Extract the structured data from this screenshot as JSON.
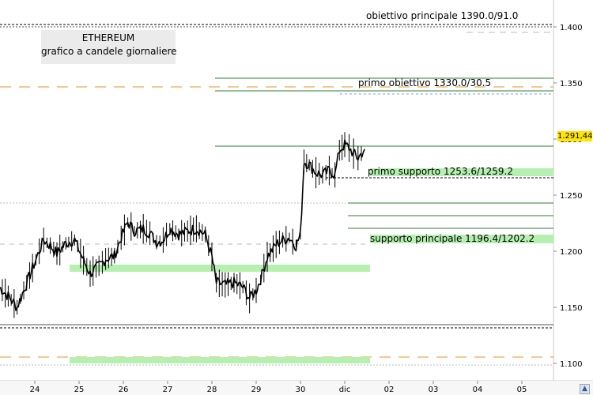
{
  "header": {
    "asset": "ETHEREUM",
    "subtitle": "grafico a candele giornaliere"
  },
  "last_price": "1.291,44",
  "annotations": {
    "target_main": "obiettivo principale 1390.0/91.0",
    "target_first": "primo obiettivo 1330.0/30.5",
    "support_first": "primo supporto 1253.6/1259.2",
    "support_main": "supporto principale 1196.4/1202.2"
  },
  "colors": {
    "candle": "#000000",
    "level_green": "#2e7d32",
    "support_zone": "#b6f0b0",
    "orange_dash": "#f5b56b",
    "price_tag": "#ffe600"
  },
  "chart_data": {
    "type": "line",
    "title": "ETHEREUM",
    "subtitle": "grafico a candele giornaliere",
    "xlabel": "",
    "ylabel": "",
    "x_ticks": [
      "24",
      "25",
      "26",
      "27",
      "28",
      "29",
      "30",
      "dic",
      "02",
      "03",
      "04",
      "05"
    ],
    "y_ticks": [
      "1.100",
      "1.150",
      "1.200",
      "1.250",
      "1.300",
      "1.350",
      "1.400"
    ],
    "ylim": [
      1.09,
      1.42
    ],
    "xlim": [
      23.2,
      35.5
    ],
    "grid": false,
    "series": [
      {
        "values": [
          [
            23.2,
            1.168
          ],
          [
            23.4,
            1.16
          ],
          [
            23.6,
            1.15
          ],
          [
            23.75,
            1.165
          ],
          [
            23.95,
            1.185
          ],
          [
            24.1,
            1.2
          ],
          [
            24.2,
            1.21
          ],
          [
            24.35,
            1.205
          ],
          [
            24.5,
            1.198
          ],
          [
            24.7,
            1.207
          ],
          [
            24.9,
            1.21
          ],
          [
            25.1,
            1.192
          ],
          [
            25.25,
            1.18
          ],
          [
            25.45,
            1.187
          ],
          [
            25.6,
            1.193
          ],
          [
            25.8,
            1.196
          ],
          [
            25.95,
            1.212
          ],
          [
            26.1,
            1.226
          ],
          [
            26.25,
            1.218
          ],
          [
            26.45,
            1.22
          ],
          [
            26.6,
            1.216
          ],
          [
            26.75,
            1.208
          ],
          [
            26.9,
            1.21
          ],
          [
            27.05,
            1.22
          ],
          [
            27.25,
            1.215
          ],
          [
            27.45,
            1.218
          ],
          [
            27.65,
            1.22
          ],
          [
            27.85,
            1.215
          ],
          [
            28.0,
            1.195
          ],
          [
            28.1,
            1.172
          ],
          [
            28.3,
            1.17
          ],
          [
            28.5,
            1.172
          ],
          [
            28.7,
            1.168
          ],
          [
            28.85,
            1.158
          ],
          [
            29.0,
            1.165
          ],
          [
            29.1,
            1.175
          ],
          [
            29.25,
            1.195
          ],
          [
            29.45,
            1.206
          ],
          [
            29.6,
            1.21
          ],
          [
            29.75,
            1.212
          ],
          [
            29.9,
            1.205
          ],
          [
            30.0,
            1.215
          ],
          [
            30.08,
            1.28
          ],
          [
            30.2,
            1.277
          ],
          [
            30.35,
            1.27
          ],
          [
            30.5,
            1.268
          ],
          [
            30.65,
            1.272
          ],
          [
            30.78,
            1.268
          ],
          [
            30.88,
            1.29
          ],
          [
            31.0,
            1.295
          ],
          [
            31.1,
            1.292
          ],
          [
            31.2,
            1.287
          ],
          [
            31.3,
            1.283
          ],
          [
            31.45,
            1.291
          ]
        ]
      }
    ],
    "levels": [
      {
        "type": "resistance",
        "label": "obiettivo principale 1390.0/91.0",
        "from": 1.39,
        "to": 1.391
      },
      {
        "type": "resistance",
        "label": "primo obiettivo 1330.0/30.5",
        "from": 1.33,
        "to": 1.3305
      },
      {
        "type": "support",
        "label": "primo supporto 1253.6/1259.2",
        "from": 1.2536,
        "to": 1.2592
      },
      {
        "type": "support",
        "label": "supporto principale 1196.4/1202.2",
        "from": 1.1964,
        "to": 1.2022
      }
    ],
    "last_value": 1.29144
  }
}
